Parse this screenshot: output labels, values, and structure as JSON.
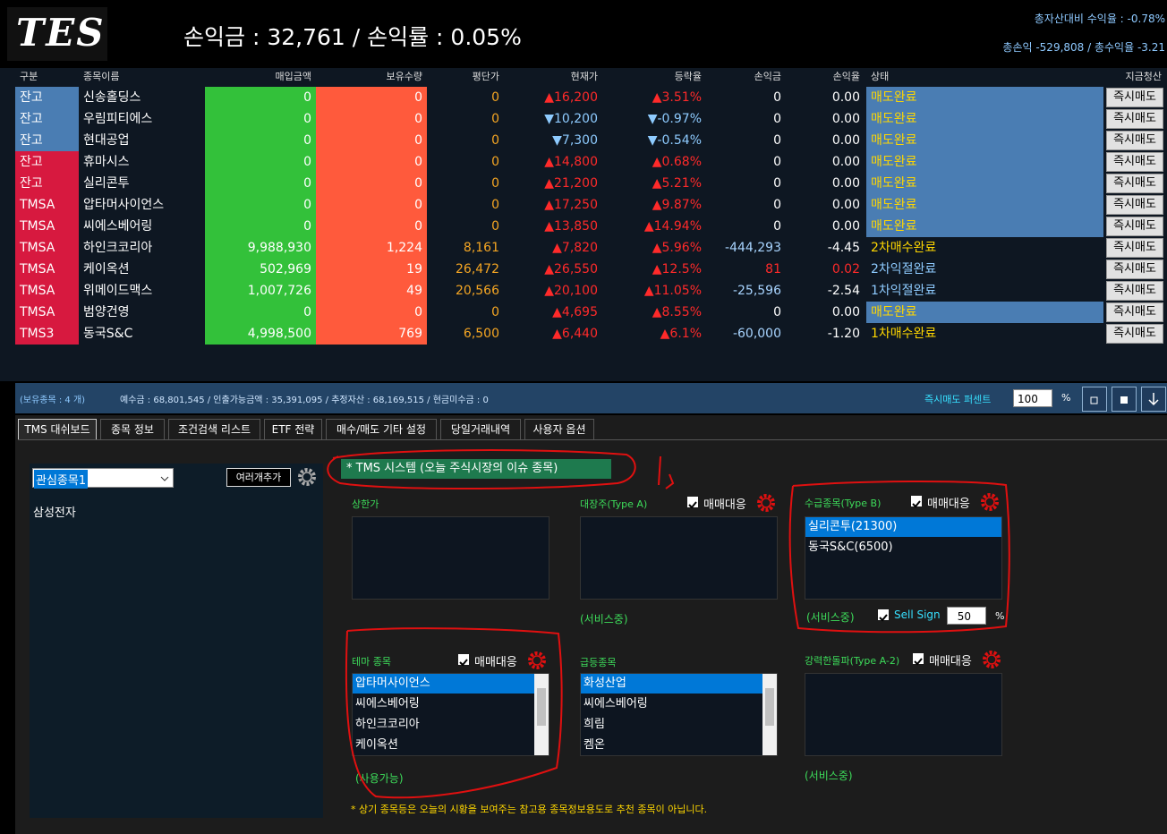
{
  "header": {
    "logo": "TES",
    "summary": "손익금 : 32,761  /  손익률 : 0.05%",
    "total_rate": "총자산대비 수익율 : -0.78%",
    "total_pnl": "총손익 -529,808 / 총수익율 -3.21"
  },
  "table": {
    "columns": [
      "구분",
      "종목이름",
      "매입금액",
      "보유수량",
      "평단가",
      "현재가",
      "등락율",
      "손익금",
      "손익율",
      "상태",
      "지금청산"
    ],
    "rows": [
      [
        "잔고",
        "신송홀딩스",
        "0",
        "0",
        "0",
        "▲16,200",
        "▲3.51%",
        "0",
        "0.00",
        "매도완료",
        "즉시매도"
      ],
      [
        "잔고",
        "우림피티에스",
        "0",
        "0",
        "0",
        "▼10,200",
        "▼-0.97%",
        "0",
        "0.00",
        "매도완료",
        "즉시매도"
      ],
      [
        "잔고",
        "현대공업",
        "0",
        "0",
        "0",
        "▼7,300",
        "▼-0.54%",
        "0",
        "0.00",
        "매도완료",
        "즉시매도"
      ],
      [
        "잔고",
        "휴마시스",
        "0",
        "0",
        "0",
        "▲14,800",
        "▲0.68%",
        "0",
        "0.00",
        "매도완료",
        "즉시매도"
      ],
      [
        "잔고",
        "실리콘투",
        "0",
        "0",
        "0",
        "▲21,200",
        "▲5.21%",
        "0",
        "0.00",
        "매도완료",
        "즉시매도"
      ],
      [
        "TMSA",
        "압타머사이언스",
        "0",
        "0",
        "0",
        "▲17,250",
        "▲9.87%",
        "0",
        "0.00",
        "매도완료",
        "즉시매도"
      ],
      [
        "TMSA",
        "씨에스베어링",
        "0",
        "0",
        "0",
        "▲13,850",
        "▲14.94%",
        "0",
        "0.00",
        "매도완료",
        "즉시매도"
      ],
      [
        "TMSA",
        "하인크코리아",
        "9,988,930",
        "1,224",
        "8,161",
        "▲7,820",
        "▲5.96%",
        "-444,293",
        "-4.45",
        "2차매수완료",
        "즉시매도"
      ],
      [
        "TMSA",
        "케이옥션",
        "502,969",
        "19",
        "26,472",
        "▲26,550",
        "▲12.5%",
        "81",
        "0.02",
        "2차익절완료",
        "즉시매도"
      ],
      [
        "TMSA",
        "위메이드맥스",
        "1,007,726",
        "49",
        "20,566",
        "▲20,100",
        "▲11.05%",
        "-25,596",
        "-2.54",
        "1차익절완료",
        "즉시매도"
      ],
      [
        "TMSA",
        "범양건영",
        "0",
        "0",
        "0",
        "▲4,695",
        "▲8.55%",
        "0",
        "0.00",
        "매도완료",
        "즉시매도"
      ],
      [
        "TMS3",
        "동국S&C",
        "4,998,500",
        "769",
        "6,500",
        "▲6,440",
        "▲6.1%",
        "-60,000",
        "-1.20",
        "1차매수완료",
        "즉시매도"
      ]
    ]
  },
  "status_bar": {
    "holdings": "(보유종목 : 4 개)",
    "balance": "예수금 : 68,801,545 / 인출가능금액 : 35,391,095 / 추정자산 : 68,169,515 / 현금미수금 : 0",
    "sell_percent_label": "즉시매도 퍼센트",
    "sell_percent": "100",
    "percent_unit": "%"
  },
  "tabs": [
    "TMS 대쉬보드",
    "종목 정보",
    "조건검색 리스트",
    "ETF 전략",
    "매수/매도 기타 설정",
    "당일거래내역",
    "사용자 옵션"
  ],
  "watchlist": {
    "dropdown": "관심종목1",
    "add_button": "여러개추가",
    "items": [
      "삼성전자"
    ]
  },
  "tms": {
    "title": "* TMS 시스템 (오늘 주식시장의 이슈 종목)",
    "panels": [
      {
        "title": "상한가",
        "items": []
      },
      {
        "title": "대장주(Type A)",
        "checkbox": "매매대응",
        "items": [],
        "status": "(서비스중)"
      },
      {
        "title": "수급종목(Type B)",
        "checkbox": "매매대응",
        "items": [
          "실리콘투(21300)",
          "동국S&C(6500)"
        ],
        "status": "(서비스중)",
        "sell_sign": "Sell Sign",
        "sell_value": "50",
        "unit": "%"
      },
      {
        "title": "테마 종목",
        "checkbox": "매매대응",
        "items": [
          "압타머사이언스",
          "씨에스베어링",
          "하인크코리아",
          "케이옥션"
        ],
        "status": "(사용가능)"
      },
      {
        "title": "급등종목",
        "items": [
          "화성산업",
          "씨에스베어링",
          "희림",
          "켐온"
        ]
      },
      {
        "title": "강력한돌파(Type A-2)",
        "checkbox": "매매대응",
        "items": [],
        "status": "(서비스중)"
      }
    ],
    "footer": "* 상기 종목등은 오늘의 시황을 보여주는 참고용 종목정보용도로 추천 종목이 아닙니다."
  }
}
